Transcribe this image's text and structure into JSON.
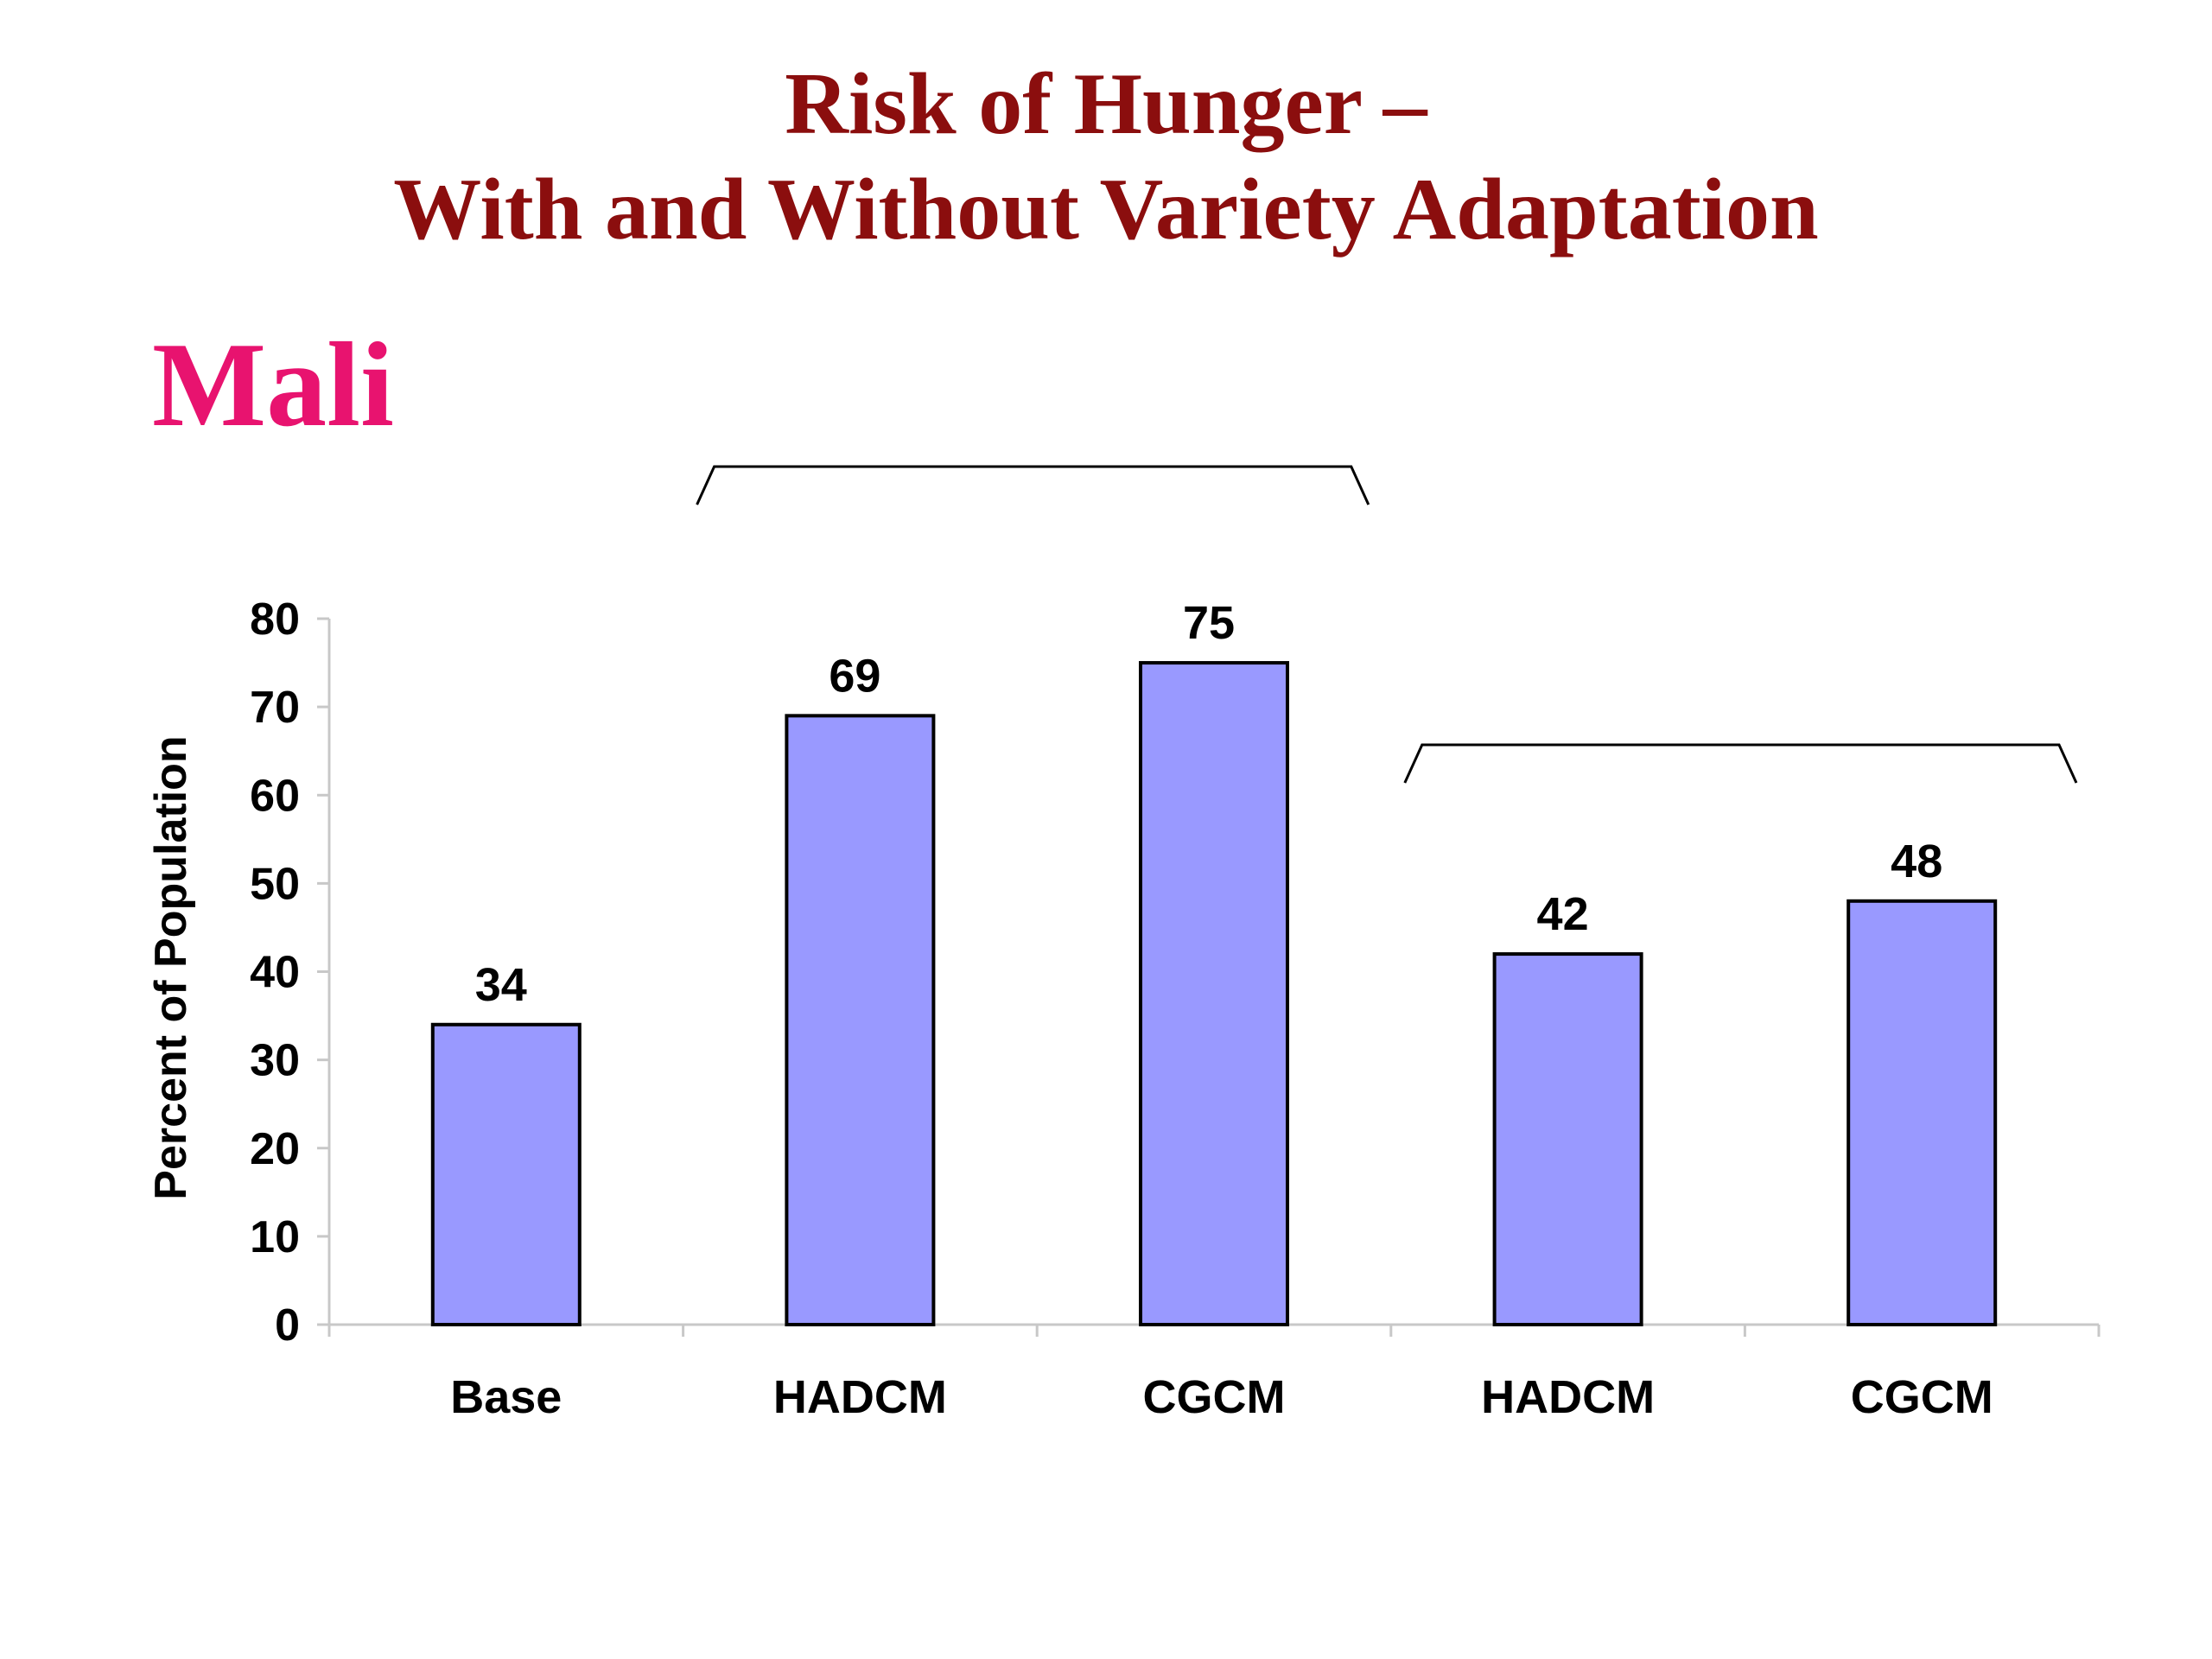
{
  "title_line1": "Risk of Hunger –",
  "title_line2": "With and Without Variety Adaptation",
  "subtitle": "Mali",
  "colors": {
    "title": "#8b0e0e",
    "subtitle": "#e8136f",
    "bar_fill": "#9999ff",
    "bar_stroke": "#000000"
  },
  "chart_data": {
    "type": "bar",
    "title": "Risk of Hunger – With and Without Variety Adaptation",
    "subtitle": "Mali",
    "categories": [
      "Base",
      "HADCM",
      "CGCM",
      "HADCM",
      "CGCM"
    ],
    "values": [
      34,
      69,
      75,
      42,
      48
    ],
    "value_labels": [
      "34",
      "69",
      "75",
      "42",
      "48"
    ],
    "ylabel": "Percent of Population",
    "xlabel": "",
    "ylim": [
      0,
      80
    ],
    "yticks": [
      0,
      10,
      20,
      30,
      40,
      50,
      60,
      70,
      80
    ],
    "grid": false,
    "legend": "none",
    "groups": [
      {
        "label": "",
        "categories": [
          1,
          2
        ]
      },
      {
        "label": "",
        "categories": [
          3,
          4
        ]
      }
    ]
  }
}
